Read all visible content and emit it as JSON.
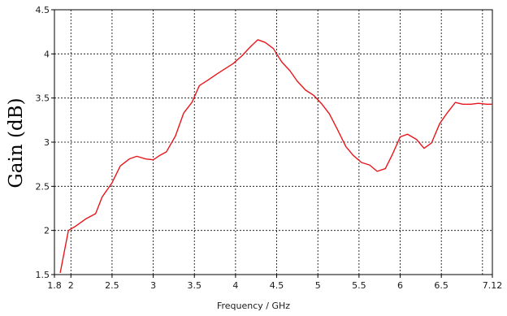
{
  "chart_data": {
    "type": "line",
    "xlabel": "Frequency / GHz",
    "ylabel": "Gain (dB)",
    "xlim": [
      1.8,
      7.12
    ],
    "ylim": [
      1.5,
      4.5
    ],
    "x_ticks": [
      {
        "value": 1.8,
        "label": "1.8"
      },
      {
        "value": 2,
        "label": "2"
      },
      {
        "value": 2.5,
        "label": "2.5"
      },
      {
        "value": 3,
        "label": "3"
      },
      {
        "value": 3.5,
        "label": "3.5"
      },
      {
        "value": 4,
        "label": "4"
      },
      {
        "value": 4.5,
        "label": "4.5"
      },
      {
        "value": 5,
        "label": "5"
      },
      {
        "value": 5.5,
        "label": "5.5"
      },
      {
        "value": 6,
        "label": "6"
      },
      {
        "value": 6.5,
        "label": "6.5"
      },
      {
        "value": 7.12,
        "label": "7.12"
      }
    ],
    "x_gridlines": [
      2,
      2.5,
      3,
      3.5,
      4,
      4.5,
      5,
      5.5,
      6,
      6.5,
      7
    ],
    "y_ticks": [
      {
        "value": 1.5,
        "label": "1.5"
      },
      {
        "value": 2,
        "label": "2"
      },
      {
        "value": 2.5,
        "label": "2.5"
      },
      {
        "value": 3,
        "label": "3"
      },
      {
        "value": 3.5,
        "label": "3.5"
      },
      {
        "value": 4,
        "label": "4"
      },
      {
        "value": 4.5,
        "label": "4.5"
      }
    ],
    "y_gridlines": [
      2,
      2.5,
      3,
      3.5,
      4
    ],
    "grid": true,
    "series": [
      {
        "color": "#e8161b",
        "x": [
          1.87,
          1.97,
          2.06,
          2.18,
          2.3,
          2.38,
          2.5,
          2.6,
          2.71,
          2.8,
          2.91,
          3.0,
          3.08,
          3.16,
          3.27,
          3.37,
          3.47,
          3.56,
          3.66,
          3.77,
          3.87,
          3.97,
          4.08,
          4.18,
          4.27,
          4.36,
          4.46,
          4.56,
          4.66,
          4.75,
          4.85,
          4.95,
          5.05,
          5.14,
          5.24,
          5.34,
          5.43,
          5.53,
          5.63,
          5.72,
          5.82,
          5.91,
          6.0,
          6.09,
          6.2,
          6.29,
          6.38,
          6.48,
          6.57,
          6.67,
          6.76,
          6.86,
          6.95,
          7.05,
          7.12
        ],
        "y": [
          1.52,
          2.0,
          2.05,
          2.13,
          2.19,
          2.38,
          2.54,
          2.73,
          2.81,
          2.84,
          2.81,
          2.8,
          2.85,
          2.89,
          3.07,
          3.33,
          3.45,
          3.64,
          3.7,
          3.77,
          3.83,
          3.89,
          3.98,
          4.08,
          4.16,
          4.13,
          4.06,
          3.91,
          3.81,
          3.69,
          3.59,
          3.53,
          3.43,
          3.32,
          3.14,
          2.95,
          2.85,
          2.77,
          2.74,
          2.67,
          2.7,
          2.87,
          3.06,
          3.09,
          3.03,
          2.93,
          2.99,
          3.21,
          3.33,
          3.45,
          3.43,
          3.43,
          3.44,
          3.43,
          3.43
        ]
      }
    ]
  }
}
